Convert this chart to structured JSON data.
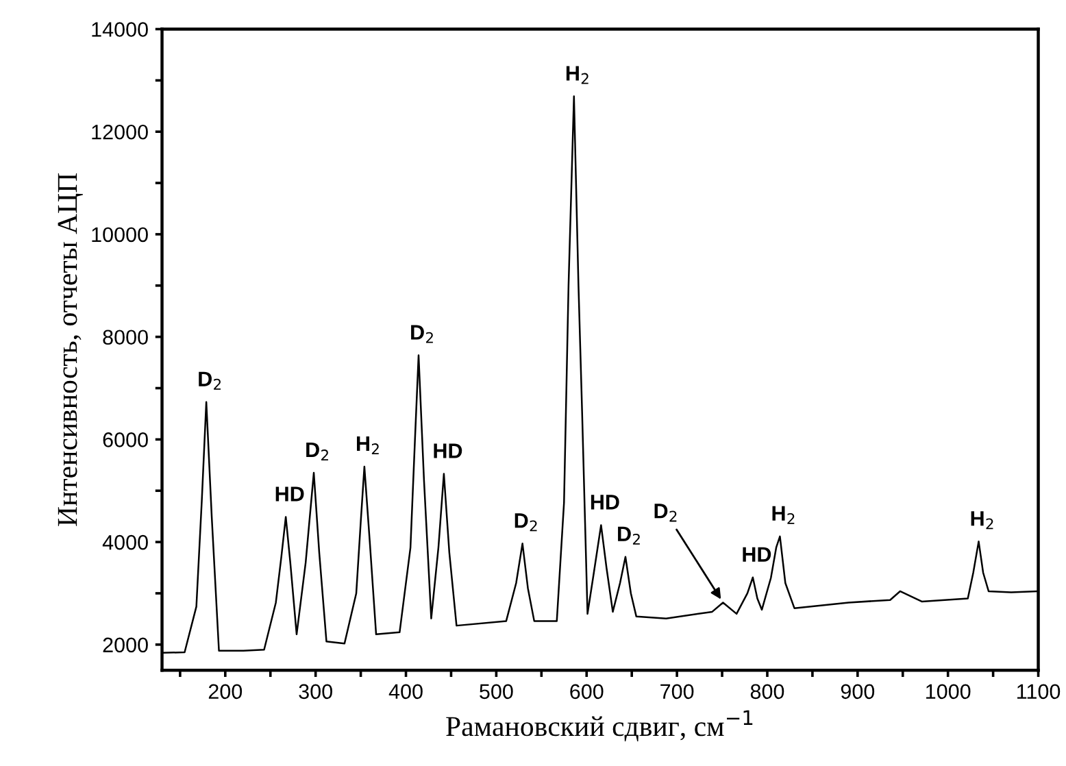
{
  "chart_data": {
    "type": "line",
    "xlabel": "Рамановский сдвиг, см$^{−1}$",
    "ylabel": "Интенсивность, отчеты АЦП",
    "series": [
      {
        "color": "#000000",
        "x": [
          131,
          155,
          168,
          174,
          179,
          185,
          193,
          220,
          243,
          256,
          262,
          267,
          272,
          279,
          289,
          298,
          304,
          312,
          332,
          345,
          350,
          354,
          360,
          367,
          393,
          405,
          410,
          414,
          420,
          428,
          436,
          442,
          448,
          456,
          511,
          522,
          529,
          535,
          542,
          567,
          575,
          580,
          586,
          591,
          595,
          601,
          608,
          616,
          622,
          629,
          637,
          643,
          649,
          655,
          688,
          739,
          751,
          766,
          778,
          784,
          789,
          794,
          804,
          810,
          814,
          820,
          830,
          890,
          936,
          947,
          971,
          1022,
          1028,
          1034,
          1039,
          1045,
          1070,
          1098
        ],
        "values": [
          1840,
          1850,
          2740,
          4800,
          6730,
          4500,
          1880,
          1880,
          1900,
          2820,
          3700,
          4490,
          3600,
          2200,
          3600,
          5350,
          3800,
          2060,
          2020,
          3000,
          4400,
          5470,
          4000,
          2200,
          2240,
          3890,
          6000,
          7640,
          5200,
          2510,
          3900,
          5330,
          3800,
          2370,
          2460,
          3200,
          3970,
          3100,
          2460,
          2460,
          4770,
          9000,
          12690,
          9000,
          6550,
          2600,
          3400,
          4330,
          3500,
          2640,
          3200,
          3710,
          3000,
          2550,
          2510,
          2640,
          2820,
          2600,
          3000,
          3310,
          2900,
          2680,
          3300,
          3900,
          4110,
          3200,
          2710,
          2820,
          2870,
          3040,
          2840,
          2900,
          3400,
          4010,
          3400,
          3040,
          3020,
          3040
        ]
      }
    ],
    "xlim": [
      130,
      1100
    ],
    "xticks": [
      {
        "value": 150,
        "label": null
      },
      200,
      {
        "value": 250,
        "label": null
      },
      300,
      {
        "value": 350,
        "label": null
      },
      400,
      {
        "value": 450,
        "label": null
      },
      500,
      {
        "value": 550,
        "label": null
      },
      600,
      {
        "value": 650,
        "label": null
      },
      700,
      {
        "value": 750,
        "label": null
      },
      800,
      {
        "value": 850,
        "label": null
      },
      900,
      {
        "value": 950,
        "label": null
      },
      1000,
      {
        "value": 1050,
        "label": null
      },
      1100
    ],
    "ylim": [
      1500,
      14000
    ],
    "yticks": [
      2000,
      {
        "value": 3000,
        "label": null
      },
      4000,
      {
        "value": 5000,
        "label": null
      },
      6000,
      {
        "value": 7000,
        "label": null
      },
      8000,
      {
        "value": 9000,
        "label": null
      },
      10000,
      {
        "value": 11000,
        "label": null
      },
      12000,
      {
        "value": 13000,
        "label": null
      },
      14000
    ],
    "annotations": [
      {
        "text": "D$_{2}$",
        "x": 179,
        "y": 6730
      },
      {
        "text": "HD",
        "x": 267,
        "y": 4490
      },
      {
        "text": "D$_{2}$",
        "x": 298,
        "y": 5350
      },
      {
        "text": "H$_{2}$",
        "x": 354,
        "y": 5470
      },
      {
        "text": "D$_{2}$",
        "x": 414,
        "y": 7640
      },
      {
        "text": "HD",
        "x": 442,
        "y": 5330
      },
      {
        "text": "D$_{2}$",
        "x": 529,
        "y": 3970
      },
      {
        "text": "H$_{2}$",
        "x": 586,
        "y": 12690
      },
      {
        "text": "HD",
        "x": 616,
        "y": 4330
      },
      {
        "text": "D$_{2}$",
        "x": 643,
        "y": 3710
      },
      {
        "text": "D$_{2}$",
        "x": 751,
        "y": 2820
      },
      {
        "text": "HD",
        "x": 784,
        "y": 3310
      },
      {
        "text": "H$_{2}$",
        "x": 814,
        "y": 4110
      },
      {
        "text": "H$_{2}$",
        "x": 1034,
        "y": 4010
      }
    ]
  }
}
